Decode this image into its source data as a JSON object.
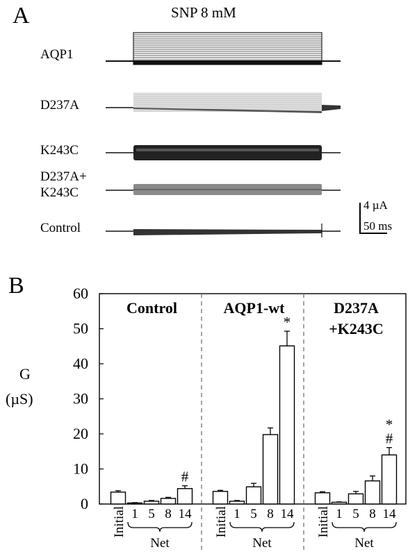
{
  "panel_a": {
    "letter": "A",
    "title": "SNP 8  mM",
    "traces": [
      {
        "label": "AQP1"
      },
      {
        "label": "D237A"
      },
      {
        "label": "K243C"
      },
      {
        "label": "D237A+\nK243C"
      },
      {
        "label": "Control"
      }
    ],
    "scale_bar": {
      "current": "4 µA",
      "time": "50 ms"
    }
  },
  "panel_b": {
    "letter": "B",
    "ylabel_line1": "G",
    "ylabel_line2": "(µS)",
    "net_label": "Net"
  },
  "chart_data": {
    "type": "bar",
    "ylim": [
      0,
      60
    ],
    "yticks": [
      "0",
      "10",
      "20",
      "30",
      "40",
      "50",
      "60"
    ],
    "categories": [
      "Initial",
      "1",
      "5",
      "8",
      "14"
    ],
    "groups": [
      {
        "title": "Control",
        "values": [
          3.4,
          0.3,
          0.8,
          1.6,
          4.4
        ],
        "errors": [
          0.4,
          0.1,
          0.2,
          0.3,
          0.8
        ],
        "annotations": [
          "",
          "",
          "",
          "",
          "#"
        ]
      },
      {
        "title": "AQP1-wt",
        "values": [
          3.6,
          0.8,
          4.9,
          19.8,
          45.1
        ],
        "errors": [
          0.3,
          0.2,
          1.0,
          1.9,
          4.2
        ],
        "annotations": [
          "",
          "",
          "",
          "",
          "*"
        ]
      },
      {
        "title": "D237A\n+K243C",
        "values": [
          3.2,
          0.5,
          2.9,
          6.6,
          14.0
        ],
        "errors": [
          0.3,
          0.1,
          0.7,
          1.4,
          2.1
        ],
        "annotations": [
          "",
          "",
          "",
          "",
          "*\n#"
        ]
      }
    ]
  }
}
